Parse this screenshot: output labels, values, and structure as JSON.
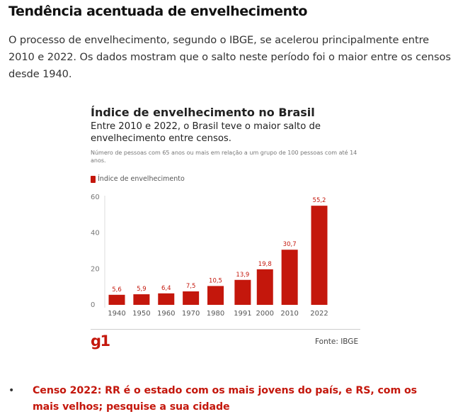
{
  "article": {
    "headline": "Tendência acentuada de envelhecimento",
    "lead": "O processo de envelhecimento, segundo o IBGE, se acelerou principalmente entre 2010 e 2022. Os dados mostram que o salto neste período foi o maior entre os censos desde 1940."
  },
  "chart_data": {
    "type": "bar",
    "title": "Índice de envelhecimento no Brasil",
    "subtitle": "Entre 2010 e 2022, o Brasil teve o maior salto de envelhecimento entre censos.",
    "note": "Número de pessoas com 65 anos ou mais em relação a um grupo de 100 pessoas com até 14 anos.",
    "categories": [
      "1940",
      "1950",
      "1960",
      "1970",
      "1980",
      "1991",
      "2000",
      "2010",
      "2022"
    ],
    "series": [
      {
        "name": "Índice de envelhecimento",
        "values": [
          5.6,
          5.9,
          6.4,
          7.5,
          10.5,
          13.9,
          19.8,
          30.7,
          55.2
        ],
        "value_labels": [
          "5,6",
          "5,9",
          "6,4",
          "7,5",
          "10,5",
          "13,9",
          "19,8",
          "30,7",
          "55,2"
        ]
      }
    ],
    "x_numeric": [
      1940,
      1950,
      1960,
      1970,
      1980,
      1991,
      2000,
      2010,
      2022
    ],
    "y_ticks": [
      0,
      20,
      40,
      60
    ],
    "ylim": [
      0,
      60
    ],
    "grid": false,
    "legend_position": "top-left",
    "bar_color": "#c4170c",
    "source": "Fonte: IBGE"
  },
  "branding": {
    "logo_text": "g1",
    "logo_color": "#c4170c"
  },
  "related": {
    "bullet": "•",
    "link_text": "Censo 2022: RR é o estado com os mais jovens do país, e RS, com os mais velhos; pesquise a sua cidade",
    "link_color": "#c4170c"
  }
}
